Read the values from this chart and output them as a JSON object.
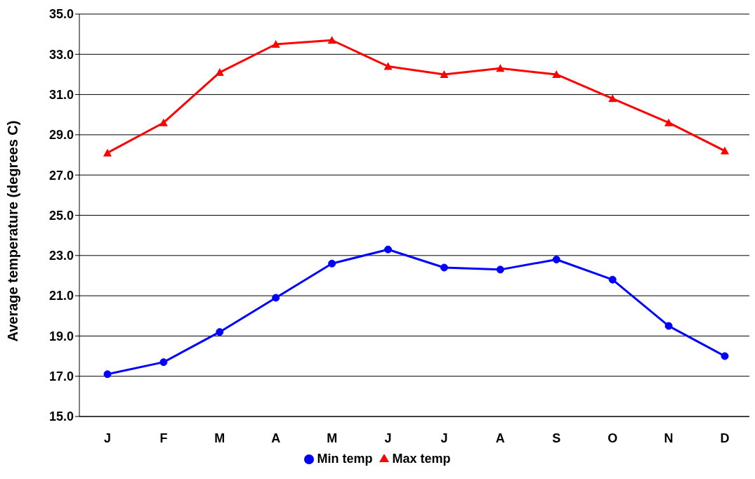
{
  "chart_data": {
    "type": "line",
    "ylabel": "Average temperature (degrees C)",
    "categories": [
      "J",
      "F",
      "M",
      "A",
      "M",
      "J",
      "J",
      "A",
      "S",
      "O",
      "N",
      "D"
    ],
    "series": [
      {
        "name": "Min temp",
        "color": "#0000ff",
        "marker": "circle",
        "values": [
          17.1,
          17.7,
          19.2,
          20.9,
          22.6,
          23.3,
          22.4,
          22.3,
          22.8,
          21.8,
          19.5,
          18.0
        ]
      },
      {
        "name": "Max temp",
        "color": "#ff0000",
        "marker": "triangle",
        "values": [
          28.1,
          29.6,
          32.1,
          33.5,
          33.7,
          32.4,
          32.0,
          32.3,
          32.0,
          30.8,
          29.6,
          28.2
        ]
      }
    ],
    "ylim": [
      15,
      35
    ],
    "yticks": [
      {
        "value": 15,
        "label": "15.0"
      },
      {
        "value": 17,
        "label": "17.0"
      },
      {
        "value": 19,
        "label": "19.0"
      },
      {
        "value": 21,
        "label": "21.0"
      },
      {
        "value": 23,
        "label": "23.0"
      },
      {
        "value": 25,
        "label": "25.0"
      },
      {
        "value": 27,
        "label": "27.0"
      },
      {
        "value": 29,
        "label": "29.0"
      },
      {
        "value": 31,
        "label": "31.0"
      },
      {
        "value": 33,
        "label": "33.0"
      },
      {
        "value": 35,
        "label": "35.0"
      }
    ],
    "grid": "y",
    "legend": "bottom",
    "line_style": "solid"
  }
}
